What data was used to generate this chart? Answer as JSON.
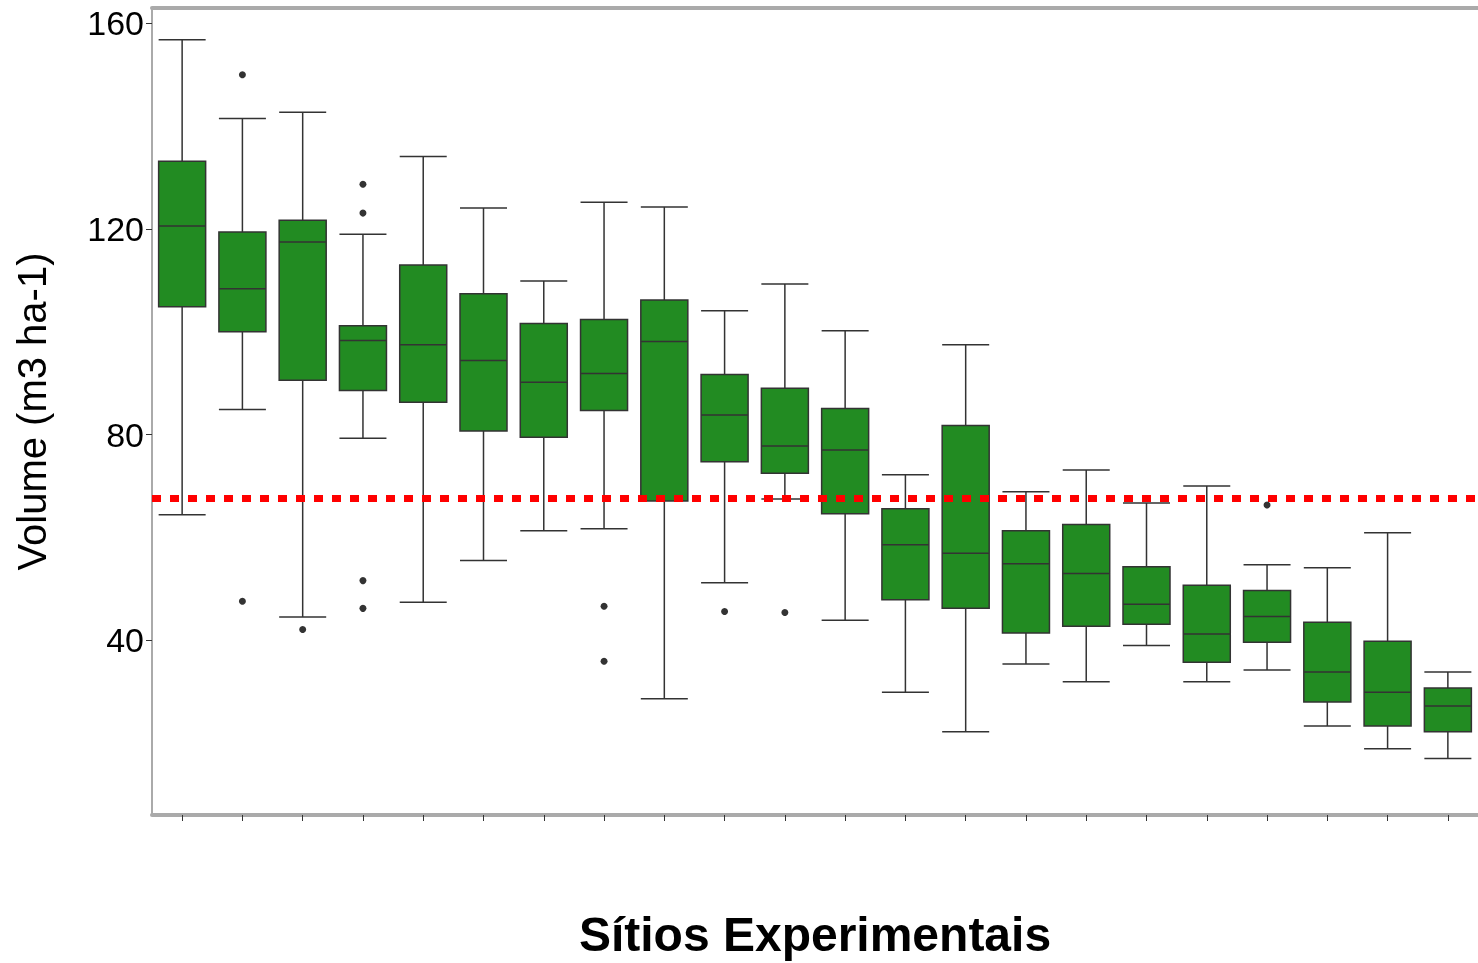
{
  "chart_data": {
    "type": "box",
    "xlabel": "Sítios Experimentais",
    "ylabel": "Volume (m3 ha-1)",
    "categories": [
      null,
      null,
      null,
      null,
      null,
      null,
      null,
      null,
      null,
      null,
      null,
      null,
      null,
      null,
      null,
      null,
      null,
      null,
      null,
      null,
      null,
      null
    ],
    "color": "#228b22",
    "boxes": [
      {
        "low": 64.4,
        "q1": 104.9,
        "median": 120.6,
        "q3": 133.2,
        "high": 156.8
      },
      {
        "low": 84.9,
        "q1": 100.0,
        "median": 108.4,
        "q3": 119.4,
        "high": 141.5,
        "outliers": [
          150.0,
          47.6
        ]
      },
      {
        "low": 44.5,
        "q1": 90.6,
        "median": 117.5,
        "q3": 121.7,
        "high": 142.7,
        "outliers": [
          42.1
        ]
      },
      {
        "low": 79.3,
        "q1": 88.6,
        "median": 98.3,
        "q3": 101.2,
        "high": 119.0,
        "outliers": [
          128.7,
          123.1,
          51.6,
          46.2
        ]
      },
      {
        "low": 47.4,
        "q1": 86.3,
        "median": 97.5,
        "q3": 113.0,
        "high": 134.1
      },
      {
        "low": 55.5,
        "q1": 80.7,
        "median": 94.4,
        "q3": 107.4,
        "high": 124.1
      },
      {
        "low": 61.3,
        "q1": 79.5,
        "median": 90.2,
        "q3": 101.6,
        "high": 109.9
      },
      {
        "low": 61.7,
        "q1": 84.7,
        "median": 91.9,
        "q3": 102.4,
        "high": 125.2,
        "outliers": [
          46.6,
          35.9
        ]
      },
      {
        "low": 28.6,
        "q1": 67.1,
        "median": 98.1,
        "q3": 106.2,
        "high": 124.3
      },
      {
        "low": 51.2,
        "q1": 74.7,
        "median": 83.8,
        "q3": 91.7,
        "high": 104.1,
        "outliers": [
          45.6
        ]
      },
      {
        "low": 67.5,
        "q1": 72.5,
        "median": 77.8,
        "q3": 89.0,
        "high": 109.3,
        "outliers": [
          45.4
        ]
      },
      {
        "low": 43.9,
        "q1": 64.6,
        "median": 77.0,
        "q3": 85.1,
        "high": 100.2
      },
      {
        "low": 29.9,
        "q1": 47.9,
        "median": 58.6,
        "q3": 65.6,
        "high": 72.2
      },
      {
        "low": 22.2,
        "q1": 46.2,
        "median": 56.9,
        "q3": 81.8,
        "high": 97.5
      },
      {
        "low": 35.4,
        "q1": 41.4,
        "median": 54.9,
        "q3": 61.3,
        "high": 68.9
      },
      {
        "low": 31.9,
        "q1": 42.7,
        "median": 53.0,
        "q3": 62.5,
        "high": 73.1
      },
      {
        "low": 39.0,
        "q1": 43.1,
        "median": 47.0,
        "q3": 54.3,
        "high": 66.7
      },
      {
        "low": 31.9,
        "q1": 35.7,
        "median": 41.2,
        "q3": 50.7,
        "high": 70.0
      },
      {
        "low": 34.2,
        "q1": 39.6,
        "median": 44.6,
        "q3": 49.7,
        "high": 54.7,
        "outliers": [
          66.3
        ]
      },
      {
        "low": 23.3,
        "q1": 28.0,
        "median": 33.8,
        "q3": 43.5,
        "high": 54.1
      },
      {
        "low": 18.9,
        "q1": 23.3,
        "median": 29.9,
        "q3": 39.8,
        "high": 60.9
      },
      {
        "low": 17.0,
        "q1": 22.2,
        "median": 27.2,
        "q3": 30.7,
        "high": 33.8
      }
    ],
    "ylim": [
      6,
      163
    ],
    "yticks": [
      40,
      80,
      120,
      160
    ],
    "ref_lines": [
      {
        "axis": "y",
        "value": 67.7,
        "color": "#ff0000",
        "line_style": "dotted"
      }
    ],
    "grid": false
  }
}
